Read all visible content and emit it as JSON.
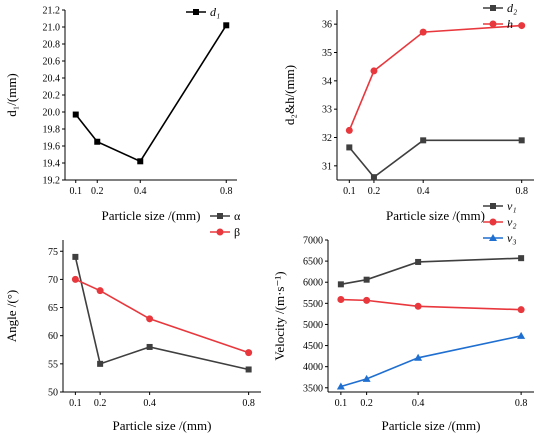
{
  "chart_data": [
    {
      "type": "line",
      "xlabel": "Particle size /(mm)",
      "ylabel": "d₁/(mm)",
      "x": [
        0.1,
        0.2,
        0.4,
        0.8
      ],
      "x_ticks": [
        "0.1",
        "0.2",
        "0.4",
        "0.8"
      ],
      "ylim": [
        19.2,
        21.2
      ],
      "y_ticks": [
        "19.2",
        "19.4",
        "19.6",
        "19.8",
        "20.0",
        "20.2",
        "20.4",
        "20.6",
        "20.8",
        "21.0",
        "21.2"
      ],
      "legend_position": "top-right",
      "series": [
        {
          "name": "d₁",
          "values": [
            19.97,
            19.65,
            19.42,
            21.02
          ],
          "color": "#000000",
          "marker": "square"
        }
      ]
    },
    {
      "type": "line",
      "xlabel": "Particle size /(mm)",
      "ylabel": "d₂&h/(mm)",
      "x": [
        0.1,
        0.2,
        0.4,
        0.8
      ],
      "x_ticks": [
        "0.1",
        "0.2",
        "0.4",
        "0.8"
      ],
      "ylim": [
        30.5,
        36.5
      ],
      "y_ticks": [
        "31",
        "32",
        "33",
        "34",
        "35",
        "36"
      ],
      "legend_position": "top-right",
      "series": [
        {
          "name": "d₂",
          "values": [
            31.65,
            30.6,
            31.9,
            31.9
          ],
          "color": "#3f3f3f",
          "marker": "square"
        },
        {
          "name": "h",
          "values": [
            32.25,
            34.35,
            35.72,
            35.95
          ],
          "color": "#e8383d",
          "marker": "circle"
        }
      ]
    },
    {
      "type": "line",
      "xlabel": "Particle size /(mm)",
      "ylabel": "Angle /(°)",
      "x": [
        0.1,
        0.2,
        0.4,
        0.8
      ],
      "x_ticks": [
        "0.1",
        "0.2",
        "0.4",
        "0.8"
      ],
      "ylim": [
        50,
        77
      ],
      "y_ticks": [
        "50",
        "55",
        "60",
        "65",
        "70",
        "75"
      ],
      "legend_position": "top-right",
      "series": [
        {
          "name": "α",
          "values": [
            74,
            55,
            58,
            54
          ],
          "color": "#3f3f3f",
          "marker": "square"
        },
        {
          "name": "β",
          "values": [
            70,
            68,
            63,
            57
          ],
          "color": "#e8383d",
          "marker": "circle"
        }
      ]
    },
    {
      "type": "line",
      "xlabel": "Particle size /(mm)",
      "ylabel": "Velocity /(m·s⁻¹)",
      "x": [
        0.1,
        0.2,
        0.4,
        0.8
      ],
      "x_ticks": [
        "0.1",
        "0.2",
        "0.4",
        "0.8"
      ],
      "ylim": [
        3400,
        7000
      ],
      "y_ticks": [
        "3500",
        "4000",
        "4500",
        "5000",
        "5500",
        "6000",
        "6500",
        "7000"
      ],
      "legend_position": "top-right",
      "series": [
        {
          "name": "v₁",
          "values": [
            5950,
            6060,
            6480,
            6570
          ],
          "color": "#3f3f3f",
          "marker": "square"
        },
        {
          "name": "v₂",
          "values": [
            5590,
            5570,
            5430,
            5350
          ],
          "color": "#e8383d",
          "marker": "circle"
        },
        {
          "name": "v₃",
          "values": [
            3530,
            3710,
            4210,
            4730
          ],
          "color": "#1f6fd1",
          "marker": "triangle"
        }
      ]
    }
  ]
}
